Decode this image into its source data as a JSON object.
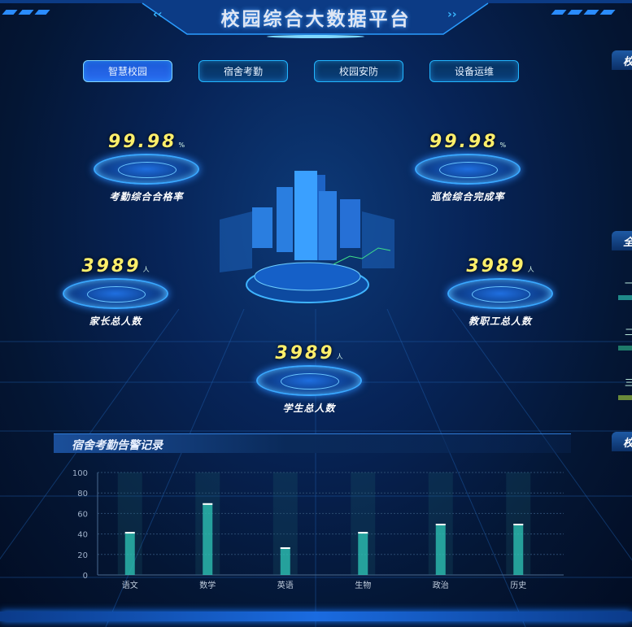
{
  "header": {
    "title": "校园综合大数据平台"
  },
  "tabs": [
    {
      "label": "智慧校园",
      "active": true
    },
    {
      "label": "宿舍考勤",
      "active": false
    },
    {
      "label": "校园安防",
      "active": false
    },
    {
      "label": "设备运维",
      "active": false
    }
  ],
  "stats": {
    "exam": {
      "value": "99.98",
      "unit": "%",
      "label": "考勤综合合格率"
    },
    "patrol": {
      "value": "99.98",
      "unit": "%",
      "label": "巡检综合完成率"
    },
    "parents": {
      "value": "3989",
      "unit": "人",
      "label": "家长总人数"
    },
    "staff": {
      "value": "3989",
      "unit": "人",
      "label": "教职工总人数"
    },
    "students": {
      "value": "3989",
      "unit": "人",
      "label": "学生总人数"
    }
  },
  "right_panels": {
    "titles": [
      "校",
      "全",
      "校"
    ],
    "rank_labels": [
      "一",
      "二",
      "三"
    ],
    "bar_colors": [
      "#1f8a8a",
      "#1e7a6a",
      "#6a8a3a"
    ]
  },
  "alarm_panel": {
    "title": "宿舍考勤告警记录"
  },
  "colors": {
    "accent": "#22b6ff",
    "value": "#ffef6b",
    "bar": "#2fc9b8"
  },
  "chart_data": {
    "type": "bar",
    "categories": [
      "语文",
      "数学",
      "英语",
      "生物",
      "政治",
      "历史"
    ],
    "values": [
      42,
      70,
      27,
      42,
      50,
      50
    ],
    "ylim": [
      0,
      100
    ],
    "yticks": [
      0,
      20,
      40,
      60,
      80,
      100
    ],
    "grid": true,
    "xlabel": "",
    "ylabel": "",
    "title": ""
  }
}
